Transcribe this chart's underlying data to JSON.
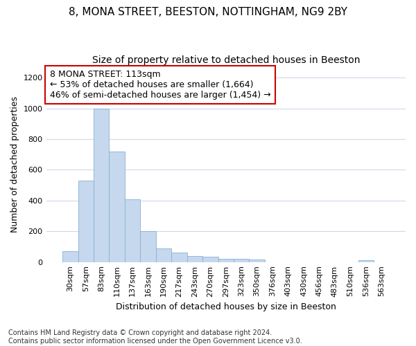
{
  "title_line1": "8, MONA STREET, BEESTON, NOTTINGHAM, NG9 2BY",
  "title_line2": "Size of property relative to detached houses in Beeston",
  "xlabel": "Distribution of detached houses by size in Beeston",
  "ylabel": "Number of detached properties",
  "categories": [
    "30sqm",
    "57sqm",
    "83sqm",
    "110sqm",
    "137sqm",
    "163sqm",
    "190sqm",
    "217sqm",
    "243sqm",
    "270sqm",
    "297sqm",
    "323sqm",
    "350sqm",
    "376sqm",
    "403sqm",
    "430sqm",
    "456sqm",
    "483sqm",
    "510sqm",
    "536sqm",
    "563sqm"
  ],
  "values": [
    70,
    530,
    1000,
    720,
    410,
    200,
    90,
    60,
    40,
    35,
    20,
    20,
    15,
    0,
    0,
    0,
    0,
    0,
    0,
    10,
    0
  ],
  "bar_color": "#c5d8ee",
  "bar_edge_color": "#8ab0d0",
  "annotation_text": "8 MONA STREET: 113sqm\n← 53% of detached houses are smaller (1,664)\n46% of semi-detached houses are larger (1,454) →",
  "annotation_box_color": "#ffffff",
  "annotation_border_color": "#cc0000",
  "ylim": [
    0,
    1270
  ],
  "yticks": [
    0,
    200,
    400,
    600,
    800,
    1000,
    1200
  ],
  "footnote": "Contains HM Land Registry data © Crown copyright and database right 2024.\nContains public sector information licensed under the Open Government Licence v3.0.",
  "background_color": "#ffffff",
  "plot_bg_color": "#ffffff",
  "grid_color": "#d0d8e8",
  "title_fontsize": 11,
  "subtitle_fontsize": 10,
  "axis_label_fontsize": 9,
  "tick_fontsize": 8,
  "annotation_fontsize": 9,
  "footnote_fontsize": 7
}
